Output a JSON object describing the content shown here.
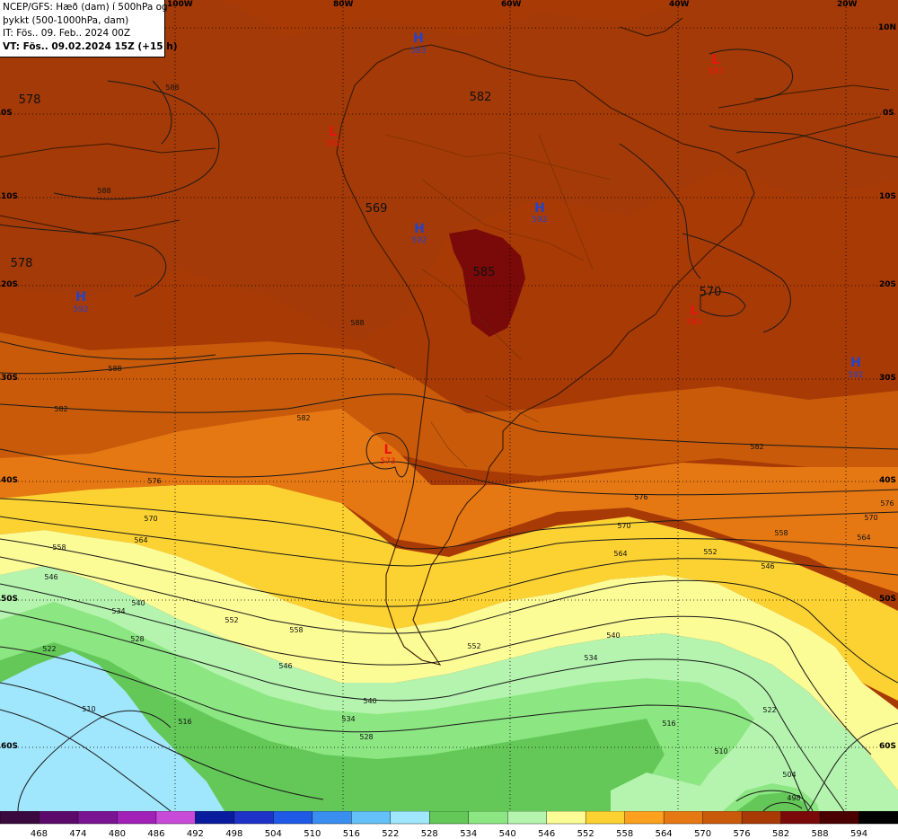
{
  "header": {
    "line1": "NCEP/GFS: Hæð (dam) í 500hPa og",
    "line2": "þykkt (500-1000hPa, dam)",
    "line3": "IT: Fös.. 09. Feb.. 2024 00Z",
    "line4": "VT: Fös.. 09.02.2024 15Z (+15 h)"
  },
  "grid": {
    "lon_labels": [
      "100W",
      "80W",
      "60W",
      "40W",
      "20W"
    ],
    "lat_labels": [
      "10N",
      "0S",
      "10S",
      "20S",
      "30S",
      "40S",
      "50S",
      "60S"
    ]
  },
  "pressure_centers": [
    {
      "type": "H",
      "value": "593",
      "color": "#2244cc"
    },
    {
      "type": "H",
      "value": "592",
      "color": "#2244cc"
    },
    {
      "type": "H",
      "value": "592",
      "color": "#2244cc"
    },
    {
      "type": "H",
      "value": "592",
      "color": "#2244cc"
    },
    {
      "type": "H",
      "value": "592",
      "color": "#2244cc"
    },
    {
      "type": "L",
      "value": "587",
      "color": "#ee1111"
    },
    {
      "type": "L",
      "value": "585",
      "color": "#ee1111"
    },
    {
      "type": "L",
      "value": "573",
      "color": "#ee1111"
    },
    {
      "type": "L",
      "value": "582",
      "color": "#ee1111"
    }
  ],
  "region_labels": [
    "578",
    "578",
    "582",
    "569",
    "585",
    "570"
  ],
  "contour_labels": [
    "588",
    "588",
    "588",
    "588",
    "582",
    "582",
    "582",
    "576",
    "576",
    "576",
    "570",
    "570",
    "570",
    "564",
    "564",
    "564",
    "558",
    "558",
    "558",
    "552",
    "552",
    "552",
    "546",
    "546",
    "546",
    "540",
    "540",
    "540",
    "534",
    "534",
    "534",
    "528",
    "528",
    "522",
    "522",
    "516",
    "516",
    "510",
    "510",
    "504",
    "498"
  ],
  "colorbar": {
    "values": [
      "468",
      "474",
      "480",
      "486",
      "492",
      "498",
      "504",
      "510",
      "516",
      "522",
      "528",
      "534",
      "540",
      "546",
      "552",
      "558",
      "564",
      "570",
      "576",
      "582",
      "588",
      "594"
    ],
    "colors": [
      "#3a0a3e",
      "#5c0a6a",
      "#7a1493",
      "#a020b8",
      "#c84ad8",
      "#0a1c9e",
      "#1e32c8",
      "#1e5ae6",
      "#3a8ef0",
      "#64c0f8",
      "#a0e6fc",
      "#64c858",
      "#8ce682",
      "#b4f4ae",
      "#fcfc96",
      "#fcd232",
      "#fca01e",
      "#e67814",
      "#c85a0a",
      "#a83a06",
      "#7a0a0a",
      "#4a0000",
      "#000000"
    ]
  }
}
